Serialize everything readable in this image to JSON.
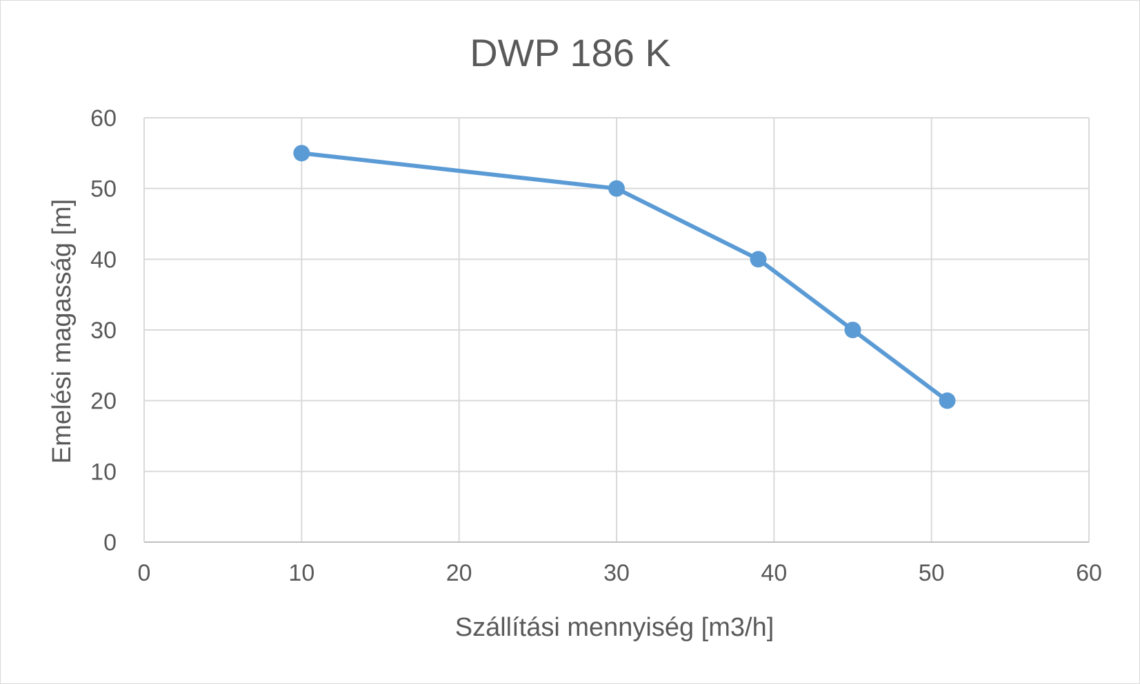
{
  "chart_data": {
    "type": "scatter",
    "title": "DWP 186 K",
    "xlabel": "Szállítási mennyiség [m3/h]",
    "ylabel": "Emelési magasság [m]",
    "xlim": [
      0,
      60
    ],
    "ylim": [
      0,
      60
    ],
    "x_ticks": [
      0,
      10,
      20,
      30,
      40,
      50,
      60
    ],
    "y_ticks": [
      0,
      10,
      20,
      30,
      40,
      50,
      60
    ],
    "grid": true,
    "legend": "none",
    "series": [
      {
        "color": "#5b9bd5",
        "x": [
          10,
          30,
          39,
          45,
          51
        ],
        "y": [
          55,
          50,
          40,
          30,
          20
        ]
      }
    ]
  }
}
